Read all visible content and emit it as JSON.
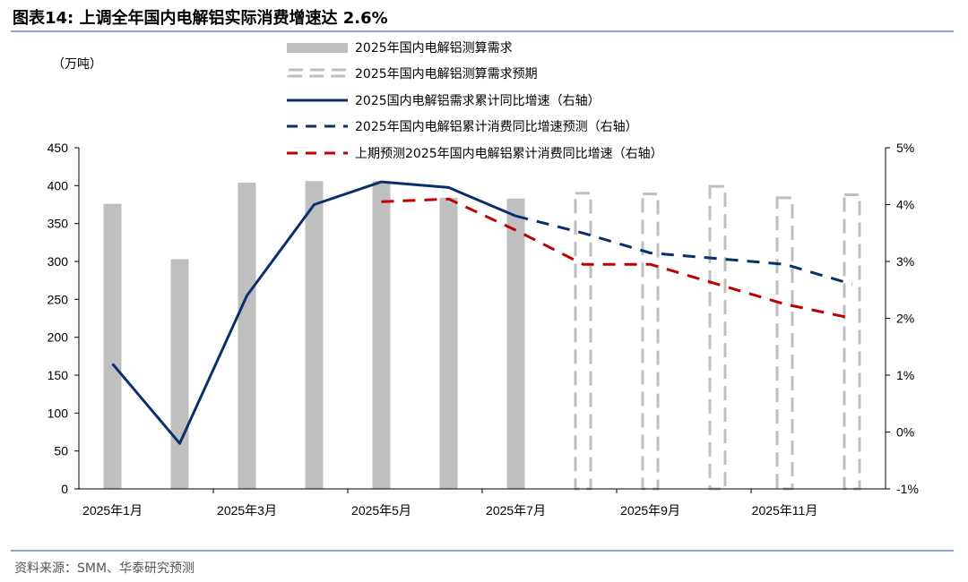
{
  "title": "图表14:  上调全年国内电解铝实际消费增速达 2.6%",
  "source": "资料来源：SMM、华泰研究预测",
  "chart_data": {
    "type": "bar+line",
    "unit_left": "（万吨）",
    "x_tick_labels": [
      "2025年1月",
      "2025年3月",
      "2025年5月",
      "2025年7月",
      "2025年9月",
      "2025年11月"
    ],
    "x_tick_positions": [
      0,
      2,
      4,
      6,
      8,
      10
    ],
    "num_months": 12,
    "y_left": {
      "min": 0,
      "max": 450,
      "step": 50,
      "ticks": [
        "0",
        "50",
        "100",
        "150",
        "200",
        "250",
        "300",
        "350",
        "400",
        "450"
      ]
    },
    "y_right": {
      "min": -1,
      "max": 5,
      "step": 1,
      "ticks": [
        "-1%",
        "0%",
        "1%",
        "2%",
        "3%",
        "4%",
        "5%"
      ]
    },
    "series": [
      {
        "name": "2025年国内电解铝测算需求",
        "kind": "bar",
        "color": "#bfbfbf",
        "values": [
          376,
          303,
          404,
          406,
          406,
          384,
          383,
          null,
          null,
          null,
          null,
          null
        ]
      },
      {
        "name": "2025年国内电解铝测算需求预期",
        "kind": "bar-dashed",
        "color": "#bfbfbf",
        "values": [
          null,
          null,
          null,
          null,
          null,
          null,
          null,
          390,
          389,
          399,
          384,
          388
        ]
      },
      {
        "name": "2025国内电解铝需求累计同比增速（右轴）",
        "kind": "line",
        "axis": "right",
        "color": "#0b2f6b",
        "values": [
          1.2,
          -0.2,
          2.4,
          4.0,
          4.4,
          4.3,
          3.8,
          null,
          null,
          null,
          null,
          null
        ]
      },
      {
        "name": "2025年国内电解铝累计消费同比增速预测（右轴）",
        "kind": "line-dashed",
        "axis": "right",
        "color": "#0b2f6b",
        "values": [
          null,
          null,
          null,
          null,
          null,
          null,
          3.8,
          3.5,
          3.15,
          3.05,
          2.95,
          2.6
        ]
      },
      {
        "name": "上期预测2025年国内电解铝累计消费同比增速（右轴）",
        "kind": "line-dashed",
        "axis": "right",
        "color": "#c00000",
        "values": [
          null,
          null,
          null,
          null,
          4.05,
          4.1,
          3.55,
          2.95,
          2.95,
          2.6,
          2.25,
          2.0
        ]
      }
    ]
  }
}
